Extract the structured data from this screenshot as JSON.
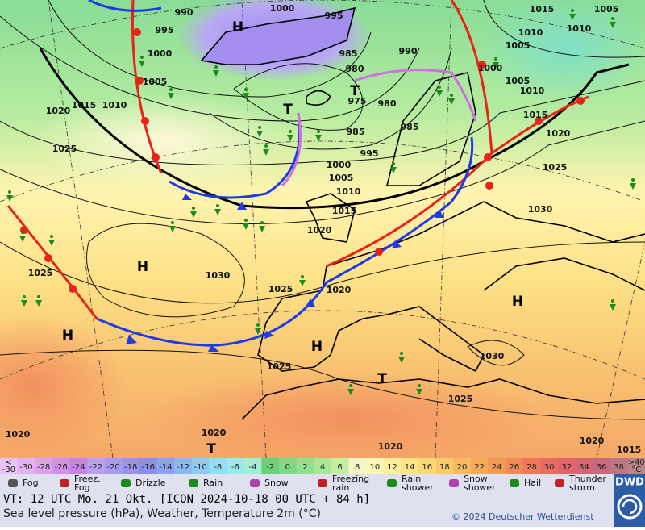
{
  "map": {
    "isobar_labels": [
      990,
      1000,
      995,
      995,
      1000,
      1005,
      1020,
      1015,
      1010,
      1025,
      985,
      990,
      980,
      975,
      980,
      985,
      985,
      995,
      1000,
      1005,
      1010,
      1015,
      1020,
      1030,
      1025,
      1020,
      1025,
      1025,
      1030,
      1025,
      1020,
      1020,
      1020,
      1020,
      1015,
      1030,
      1025,
      1020,
      1015,
      1010,
      1005,
      1000,
      1005,
      1010,
      1015,
      1010,
      1005
    ],
    "pressure_systems": [
      "H",
      "T",
      "T",
      "H",
      "H",
      "H",
      "T",
      "H",
      "T"
    ]
  },
  "legend": {
    "temperature": {
      "low_end": [
        "<",
        "-30"
      ],
      "values": [
        -30,
        -28,
        -26,
        -24,
        -22,
        -20,
        -18,
        -16,
        -14,
        -12,
        -10,
        -8,
        -6,
        -4,
        -2,
        0,
        2,
        4,
        6,
        8,
        10,
        12,
        14,
        16,
        18,
        20,
        22,
        24,
        26,
        28,
        30,
        32,
        34,
        36,
        38
      ],
      "high_end": [
        ">40",
        "°C"
      ],
      "colors": [
        "#e9c3f5",
        "#e2b2f2",
        "#d9a2ee",
        "#cf92ea",
        "#c583e6",
        "#b9a0f2",
        "#a89af0",
        "#9a93ee",
        "#8d8dec",
        "#8aa2f0",
        "#8ab8f4",
        "#8ccdf5",
        "#90dff2",
        "#98ebe6",
        "#a2f0d4",
        "#6cd07a",
        "#7ed886",
        "#92e08e",
        "#a8e898",
        "#c2efa4",
        "#f4f6c8",
        "#fbf7b4",
        "#fcf09a",
        "#fce586",
        "#fbd876",
        "#f9ca6a",
        "#f7ba60",
        "#f5aa58",
        "#f39a55",
        "#f08a56",
        "#ec7a5a",
        "#e96d62",
        "#e0646a",
        "#d56474",
        "#c86a7e",
        "#bd7686",
        "#b8858c"
      ]
    },
    "weather": [
      {
        "lines": [
          "Fog"
        ]
      },
      {
        "lines": [
          "Freez.",
          "Fog"
        ]
      },
      {
        "lines": [
          "Drizzle"
        ]
      },
      {
        "lines": [
          "Rain"
        ]
      },
      {
        "lines": [
          "Snow"
        ]
      },
      {
        "lines": [
          "Freezing",
          "rain"
        ]
      },
      {
        "lines": [
          "Rain",
          "shower"
        ]
      },
      {
        "lines": [
          "Snow",
          "shower"
        ]
      },
      {
        "lines": [
          "Hail"
        ]
      },
      {
        "lines": [
          "Thunder",
          "storm"
        ]
      }
    ]
  },
  "footer": {
    "valid_time": "VT: 12 UTC Mo.  21 Okt. [ICON 2024-10-18  00 UTC + 84 h]",
    "description": "Sea level pressure (hPa), Weather, Temperature 2m (°C)",
    "copyright": "© 2024 Deutscher Wetterdienst",
    "logo": "DWD"
  }
}
